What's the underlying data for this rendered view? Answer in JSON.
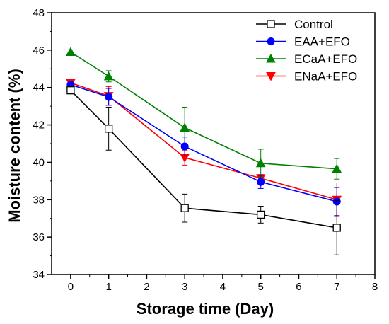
{
  "chart_data": {
    "type": "line",
    "xlabel": "Storage time (Day)",
    "ylabel": "Moisture content (%)",
    "xlim": [
      -0.5,
      8
    ],
    "ylim": [
      34,
      48
    ],
    "xticks": [
      0,
      1,
      2,
      3,
      4,
      5,
      6,
      7,
      8
    ],
    "yticks": [
      34,
      36,
      38,
      40,
      42,
      44,
      46,
      48
    ],
    "x": [
      0,
      1,
      3,
      5,
      7
    ],
    "legend_position": "top-right",
    "grid": false,
    "series": [
      {
        "name": "Control",
        "color": "#000000",
        "marker": "square-open",
        "values": [
          43.85,
          41.8,
          37.55,
          37.2,
          36.5
        ],
        "errors": [
          0.15,
          1.15,
          0.75,
          0.45,
          1.45
        ]
      },
      {
        "name": "EAA+EFO",
        "color": "#0000ff",
        "marker": "circle",
        "values": [
          44.15,
          43.5,
          40.85,
          38.95,
          37.9
        ],
        "errors": [
          0.1,
          0.45,
          0.5,
          0.35,
          0.75
        ]
      },
      {
        "name": "ECaA+EFO",
        "color": "#008000",
        "marker": "triangle-up",
        "values": [
          45.9,
          44.6,
          41.85,
          39.95,
          39.65
        ],
        "errors": [
          0.0,
          0.3,
          1.1,
          0.75,
          0.55
        ]
      },
      {
        "name": "ENaA+EFO",
        "color": "#ff0000",
        "marker": "triangle-down",
        "values": [
          44.25,
          43.55,
          40.25,
          39.15,
          38.0
        ],
        "errors": [
          0.1,
          0.5,
          0.4,
          0.2,
          0.9
        ]
      }
    ]
  }
}
